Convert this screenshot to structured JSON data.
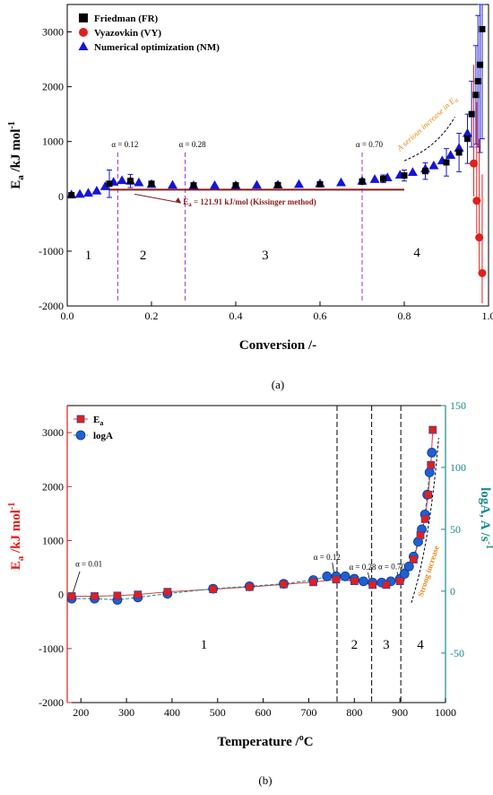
{
  "chart_data": [
    {
      "type": "scatter",
      "panel_label": "(a)",
      "xlabel": "Conversion /-",
      "ylabel_main": "E",
      "ylabel_sub": "a",
      "ylabel_rest": " /kJ mol",
      "ylabel_sup": "-1",
      "xlim": [
        0.0,
        1.0
      ],
      "ylim": [
        -2000,
        3500
      ],
      "xticks": [
        0.0,
        0.2,
        0.4,
        0.6,
        0.8,
        1.0
      ],
      "xtick_labels": [
        "0.0",
        "0.2",
        "0.4",
        "0.6",
        "0.8",
        "1.0"
      ],
      "yticks": [
        -2000,
        -1000,
        0,
        1000,
        2000,
        3000
      ],
      "ytick_labels": [
        "-2000",
        "-1000",
        "0",
        "1000",
        "2000",
        "3000"
      ],
      "legend_position": "top-left",
      "series": [
        {
          "name": "Friedman (FR)",
          "marker": "square",
          "color": "#000000",
          "x": [
            0.01,
            0.1,
            0.15,
            0.2,
            0.3,
            0.4,
            0.5,
            0.6,
            0.7,
            0.75,
            0.8,
            0.85,
            0.9,
            0.93,
            0.95,
            0.96,
            0.97,
            0.975,
            0.98,
            0.985
          ],
          "y": [
            20,
            230,
            280,
            230,
            200,
            200,
            205,
            220,
            270,
            320,
            380,
            460,
            620,
            800,
            1050,
            1500,
            1850,
            2100,
            2400,
            3050
          ],
          "error": [
            40,
            250,
            120,
            40,
            20,
            20,
            20,
            30,
            50,
            70,
            100,
            150,
            250,
            350,
            450,
            600,
            900,
            1200,
            1600,
            2000
          ]
        },
        {
          "name": "Vyazovkin (VY)",
          "marker": "circle",
          "color": "#e0201b",
          "x": [
            0.965,
            0.972,
            0.978,
            0.985
          ],
          "y": [
            600,
            -80,
            -750,
            -1400
          ]
        },
        {
          "name": "Numerical optimization (NM)",
          "marker": "triangle",
          "color": "#1515d6",
          "x": [
            0.01,
            0.03,
            0.05,
            0.07,
            0.09,
            0.11,
            0.13,
            0.15,
            0.17,
            0.2,
            0.25,
            0.3,
            0.35,
            0.4,
            0.45,
            0.5,
            0.55,
            0.6,
            0.65,
            0.7,
            0.73,
            0.76,
            0.79,
            0.82,
            0.85,
            0.87,
            0.89,
            0.91,
            0.93,
            0.95
          ],
          "y": [
            30,
            40,
            60,
            100,
            180,
            260,
            290,
            280,
            250,
            220,
            205,
            200,
            200,
            200,
            205,
            210,
            220,
            230,
            250,
            280,
            310,
            340,
            390,
            440,
            500,
            560,
            650,
            750,
            880,
            1150
          ]
        }
      ],
      "kissinger_line": {
        "x": [
          0.1,
          0.8
        ],
        "y": [
          121.91,
          121.91
        ],
        "color": "#8b1a1a"
      },
      "kissinger_label": "E",
      "kissinger_label_sub": "a",
      "kissinger_label_rest": " = 121.91 kJ/mol (Kissinger method)",
      "alpha_markers": [
        {
          "x": 0.12,
          "label": "α = 0.12"
        },
        {
          "x": 0.28,
          "label": "α = 0.28"
        },
        {
          "x": 0.7,
          "label": "α = 0.70"
        }
      ],
      "region_labels": [
        {
          "x": 0.05,
          "y": -1150,
          "text": "1"
        },
        {
          "x": 0.18,
          "y": -1150,
          "text": "2"
        },
        {
          "x": 0.47,
          "y": -1150,
          "text": "3"
        },
        {
          "x": 0.83,
          "y": -1100,
          "text": "4"
        }
      ],
      "annotation": {
        "text": "A serious increase in E",
        "sub": "a",
        "color": "#e8891a"
      }
    },
    {
      "type": "scatter",
      "panel_label": "(b)",
      "xlabel_main": "Temperature /",
      "xlabel_sup": "o",
      "xlabel_rest": "C",
      "ylabel_left_main": "E",
      "ylabel_left_sub": "a",
      "ylabel_left_rest": " /kJ mol",
      "ylabel_left_sup": "-1",
      "ylabel_right_main": "logA, A /s",
      "ylabel_right_sup": "-1",
      "xlim": [
        170,
        1000
      ],
      "ylim_left": [
        -2000,
        3500
      ],
      "ylim_right": [
        -90,
        150
      ],
      "xticks": [
        200,
        300,
        400,
        500,
        600,
        700,
        800,
        900,
        1000
      ],
      "xtick_labels": [
        "200",
        "300",
        "400",
        "500",
        "600",
        "700",
        "800",
        "900",
        "1000"
      ],
      "yticks_left": [
        -2000,
        -1000,
        0,
        1000,
        2000,
        3000
      ],
      "ytick_labels_left": [
        "-2000",
        "-1000",
        "0",
        "1000",
        "2000",
        "3000"
      ],
      "yticks_right": [
        -50,
        0,
        50,
        100,
        150
      ],
      "ytick_labels_right": [
        "-50",
        "0",
        "50",
        "100",
        "150"
      ],
      "legend_position": "top-left",
      "series": [
        {
          "name": "E",
          "name_sub": "a",
          "marker": "square",
          "color": "#e0201b",
          "axis": "left",
          "x": [
            180,
            230,
            280,
            325,
            390,
            490,
            570,
            645,
            710,
            760,
            800,
            840,
            870,
            900,
            930,
            945,
            955,
            962,
            968,
            972
          ],
          "y": [
            -30,
            -30,
            -20,
            0,
            50,
            100,
            140,
            190,
            230,
            280,
            250,
            180,
            180,
            250,
            650,
            1100,
            1400,
            1850,
            2400,
            3050
          ]
        },
        {
          "name": "logA",
          "marker": "circle",
          "color": "#1f5fd6",
          "axis": "right",
          "x": [
            180,
            230,
            280,
            325,
            390,
            490,
            570,
            645,
            710,
            740,
            760,
            780,
            800,
            820,
            840,
            860,
            880,
            900,
            910,
            920,
            930,
            940,
            948,
            955,
            960,
            965,
            970
          ],
          "y": [
            -6,
            -6,
            -7,
            -5,
            -2,
            2,
            4,
            6,
            9,
            12,
            12,
            12,
            10,
            8,
            7,
            7,
            8,
            10,
            14,
            20,
            28,
            40,
            50,
            62,
            78,
            96,
            112
          ]
        }
      ],
      "alpha_markers": [
        {
          "x": 762,
          "label": "α = 0.12"
        },
        {
          "x": 838,
          "label": "α = 0.28"
        },
        {
          "x": 902,
          "label": "α = 0.70"
        }
      ],
      "alpha_start": {
        "x": 182,
        "label": "α = 0.01"
      },
      "region_labels": [
        {
          "x": 470,
          "y": -1000,
          "text": "1"
        },
        {
          "x": 800,
          "y": -1000,
          "text": "2"
        },
        {
          "x": 870,
          "y": -1000,
          "text": "3"
        },
        {
          "x": 945,
          "y": -1000,
          "text": "4"
        }
      ],
      "annotation": {
        "text": "Strong increase",
        "color": "#e8891a"
      },
      "colors": {
        "left_axis": "#e0201b",
        "right_axis": "#1a8a8a",
        "line": "#4a4a4a"
      }
    }
  ]
}
